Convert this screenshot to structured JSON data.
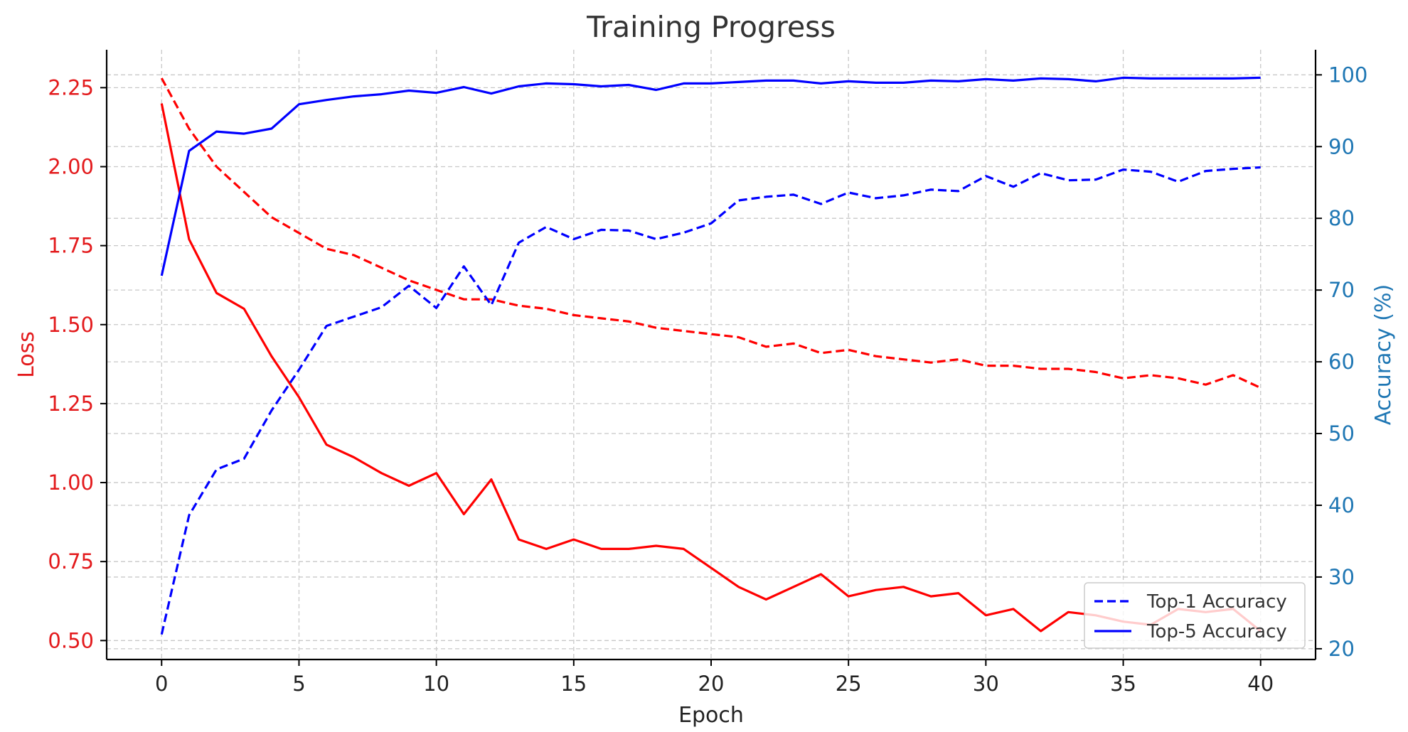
{
  "chart_data": {
    "type": "line",
    "title": "Training Progress",
    "xlabel": "Epoch",
    "ylabel_left": "Loss",
    "ylabel_right": "Accuracy (%)",
    "xlim": [
      -2,
      42
    ],
    "ylim_left": [
      0.44,
      2.37
    ],
    "ylim_right": [
      18.5,
      103.5
    ],
    "x_ticks": [
      0,
      5,
      10,
      15,
      20,
      25,
      30,
      35,
      40
    ],
    "y_left_ticks": [
      0.5,
      0.75,
      1.0,
      1.25,
      1.5,
      1.75,
      2.0,
      2.25
    ],
    "y_right_ticks": [
      20,
      30,
      40,
      50,
      60,
      70,
      80,
      90,
      100
    ],
    "grid": true,
    "legend_position": "lower-right",
    "left_axis_color": "#e31a1c",
    "right_axis_color": "#1f77b4",
    "x": [
      0,
      1,
      2,
      3,
      4,
      5,
      6,
      7,
      8,
      9,
      10,
      11,
      12,
      13,
      14,
      15,
      16,
      17,
      18,
      19,
      20,
      21,
      22,
      23,
      24,
      25,
      26,
      27,
      28,
      29,
      30,
      31,
      32,
      33,
      34,
      35,
      36,
      37,
      38,
      39,
      40
    ],
    "series": [
      {
        "axis": "left",
        "color": "#ff0000",
        "style": "solid",
        "values": [
          2.2,
          1.77,
          1.6,
          1.55,
          1.4,
          1.27,
          1.12,
          1.08,
          1.03,
          0.99,
          1.03,
          0.9,
          1.01,
          0.82,
          0.79,
          0.82,
          0.79,
          0.79,
          0.8,
          0.79,
          0.73,
          0.67,
          0.63,
          0.67,
          0.71,
          0.64,
          0.66,
          0.67,
          0.64,
          0.65,
          0.58,
          0.6,
          0.53,
          0.59,
          0.58,
          0.56,
          0.55,
          0.6,
          0.59,
          0.6,
          0.53
        ]
      },
      {
        "axis": "left",
        "color": "#ff0000",
        "style": "dashed",
        "values": [
          2.28,
          2.12,
          2.0,
          1.92,
          1.84,
          1.79,
          1.74,
          1.72,
          1.68,
          1.64,
          1.61,
          1.58,
          1.58,
          1.56,
          1.55,
          1.53,
          1.52,
          1.51,
          1.49,
          1.48,
          1.47,
          1.46,
          1.43,
          1.44,
          1.41,
          1.42,
          1.4,
          1.39,
          1.38,
          1.39,
          1.37,
          1.37,
          1.36,
          1.36,
          1.35,
          1.33,
          1.34,
          1.33,
          1.31,
          1.34,
          1.3
        ]
      },
      {
        "name": "Top-1 Accuracy",
        "axis": "right",
        "color": "#0000ff",
        "style": "dashed",
        "values": [
          22.0,
          38.6,
          45.0,
          46.5,
          53.2,
          58.9,
          65.0,
          66.3,
          67.6,
          70.6,
          67.5,
          73.3,
          67.9,
          76.6,
          78.8,
          77.1,
          78.4,
          78.3,
          77.1,
          78.0,
          79.3,
          82.5,
          83.0,
          83.3,
          82.0,
          83.6,
          82.8,
          83.2,
          84.0,
          83.8,
          85.9,
          84.4,
          86.3,
          85.3,
          85.4,
          86.8,
          86.5,
          85.1,
          86.6,
          86.9,
          87.1
        ]
      },
      {
        "name": "Top-5 Accuracy",
        "axis": "right",
        "color": "#0000ff",
        "style": "solid",
        "values": [
          72.0,
          89.4,
          92.1,
          91.8,
          92.5,
          95.9,
          96.5,
          97.0,
          97.3,
          97.8,
          97.5,
          98.3,
          97.4,
          98.4,
          98.8,
          98.7,
          98.4,
          98.6,
          97.9,
          98.8,
          98.8,
          99.0,
          99.2,
          99.2,
          98.8,
          99.1,
          98.9,
          98.9,
          99.2,
          99.1,
          99.4,
          99.2,
          99.5,
          99.4,
          99.1,
          99.6,
          99.5,
          99.5,
          99.5,
          99.5,
          99.6
        ]
      }
    ]
  }
}
